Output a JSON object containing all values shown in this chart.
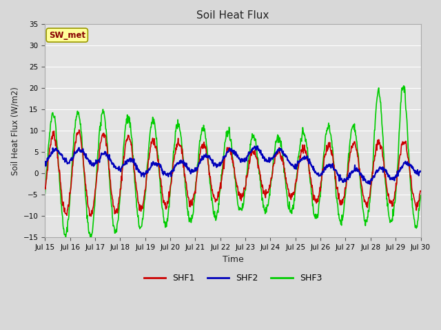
{
  "title": "Soil Heat Flux",
  "xlabel": "Time",
  "ylabel": "Soil Heat Flux (W/m2)",
  "ylim": [
    -15,
    35
  ],
  "yticks": [
    -15,
    -10,
    -5,
    0,
    5,
    10,
    15,
    20,
    25,
    30,
    35
  ],
  "background_color": "#d8d8d8",
  "plot_bg_color": "#e4e4e4",
  "grid_color": "#ffffff",
  "shf1_color": "#cc0000",
  "shf2_color": "#0000bb",
  "shf3_color": "#00cc00",
  "line_width": 1.2,
  "annotation_text": "SW_met",
  "annotation_bg": "#ffff99",
  "annotation_fg": "#880000",
  "xtick_labels": [
    "Jul 15",
    "Jul 16",
    "Jul 17",
    "Jul 18",
    "Jul 19",
    "Jul 20",
    "Jul 21",
    "Jul 22",
    "Jul 23",
    "Jul 24",
    "Jul 25",
    "Jul 26",
    "Jul 27",
    "Jul 28",
    "Jul 29",
    "Jul 30"
  ],
  "legend_labels": [
    "SHF1",
    "SHF2",
    "SHF3"
  ],
  "n_points": 960
}
